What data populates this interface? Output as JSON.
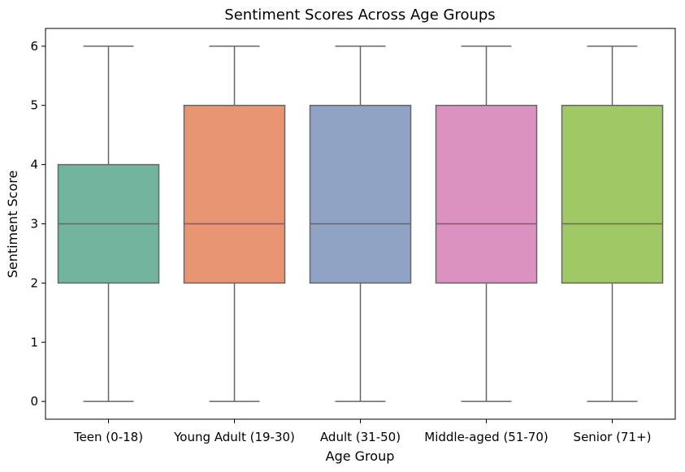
{
  "chart_data": {
    "type": "box",
    "title": "Sentiment Scores Across Age Groups",
    "xlabel": "Age Group",
    "ylabel": "Sentiment Score",
    "ylim": [
      -0.3,
      6.3
    ],
    "yticks": [
      "0",
      "1",
      "2",
      "3",
      "4",
      "5",
      "6"
    ],
    "grid": false,
    "categories": [
      "Teen (0-18)",
      "Young Adult (19-30)",
      "Adult (31-50)",
      "Middle-aged (51-70)",
      "Senior (71+)"
    ],
    "boxes": [
      {
        "min": 0,
        "q1": 2,
        "median": 3,
        "q3": 4,
        "max": 6,
        "color": "#72b59f"
      },
      {
        "min": 0,
        "q1": 2,
        "median": 3,
        "q3": 5,
        "max": 6,
        "color": "#e89572"
      },
      {
        "min": 0,
        "q1": 2,
        "median": 3,
        "q3": 5,
        "max": 6,
        "color": "#91a3c5"
      },
      {
        "min": 0,
        "q1": 2,
        "median": 3,
        "q3": 5,
        "max": 6,
        "color": "#db92c0"
      },
      {
        "min": 0,
        "q1": 2,
        "median": 3,
        "q3": 5,
        "max": 6,
        "color": "#a0c865"
      }
    ],
    "line_color": "#666666"
  }
}
